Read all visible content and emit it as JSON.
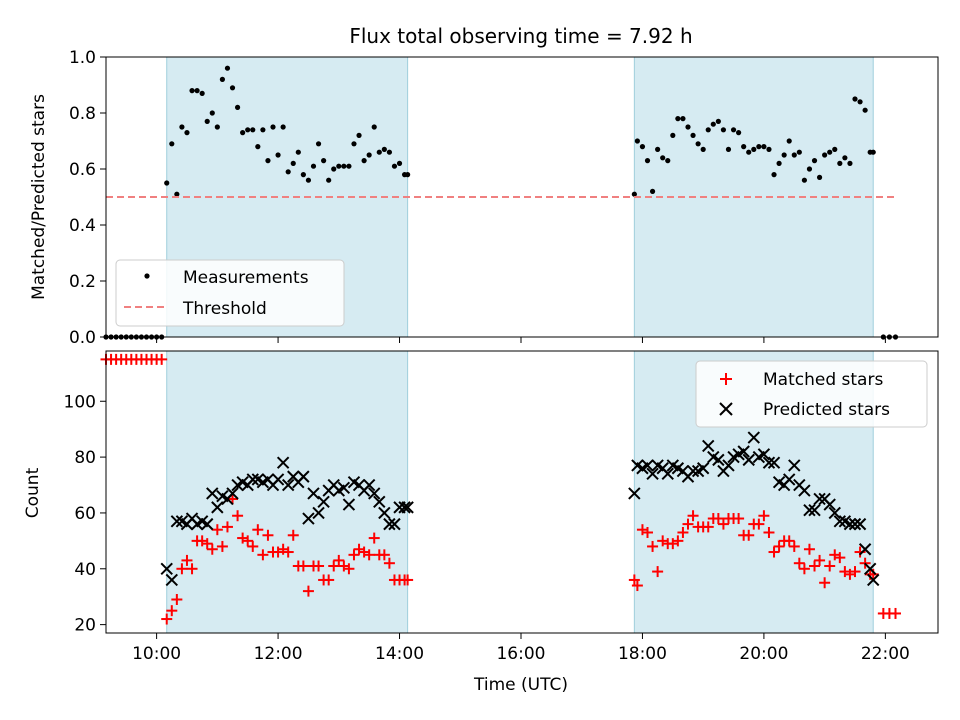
{
  "chart_data": [
    {
      "type": "scatter",
      "title": "Flux total observing time = 7.92 h",
      "xlabel": "",
      "ylabel": "Matched/Predicted stars",
      "ylim": [
        0,
        1.0
      ],
      "xlim": [
        "09:10",
        "22:52"
      ],
      "yticks": [
        0.0,
        0.2,
        0.4,
        0.6,
        0.8,
        1.0
      ],
      "ytick_labels": [
        "0.0",
        "0.2",
        "0.4",
        "0.6",
        "0.8",
        "1.0"
      ],
      "shaded_spans": [
        [
          "10:10",
          "14:08"
        ],
        [
          "17:52",
          "21:48"
        ]
      ],
      "legend_placement": "lower-left",
      "series": [
        {
          "name": "Measurements",
          "kind": "points",
          "color": "#000000",
          "x": [
            "09:10",
            "09:15",
            "09:20",
            "09:25",
            "09:30",
            "09:35",
            "09:40",
            "09:45",
            "09:50",
            "09:55",
            "10:00",
            "10:05",
            "10:10",
            "10:15",
            "10:20",
            "10:25",
            "10:30",
            "10:35",
            "10:40",
            "10:45",
            "10:50",
            "10:55",
            "11:00",
            "11:05",
            "11:10",
            "11:15",
            "11:20",
            "11:25",
            "11:30",
            "11:35",
            "11:40",
            "11:45",
            "11:50",
            "11:55",
            "12:00",
            "12:05",
            "12:10",
            "12:15",
            "12:20",
            "12:25",
            "12:30",
            "12:35",
            "12:40",
            "12:45",
            "12:50",
            "12:55",
            "13:00",
            "13:05",
            "13:10",
            "13:15",
            "13:20",
            "13:25",
            "13:30",
            "13:35",
            "13:40",
            "13:45",
            "13:50",
            "13:55",
            "14:00",
            "14:05",
            "14:08",
            "17:52",
            "17:55",
            "18:00",
            "18:05",
            "18:10",
            "18:15",
            "18:20",
            "18:25",
            "18:30",
            "18:35",
            "18:40",
            "18:45",
            "18:50",
            "18:55",
            "19:00",
            "19:05",
            "19:10",
            "19:15",
            "19:20",
            "19:25",
            "19:30",
            "19:35",
            "19:40",
            "19:45",
            "19:50",
            "19:55",
            "20:00",
            "20:05",
            "20:10",
            "20:15",
            "20:20",
            "20:25",
            "20:30",
            "20:35",
            "20:40",
            "20:45",
            "20:50",
            "20:55",
            "21:00",
            "21:05",
            "21:10",
            "21:15",
            "21:20",
            "21:25",
            "21:30",
            "21:35",
            "21:40",
            "21:45",
            "21:48",
            "21:58",
            "22:04",
            "22:10"
          ],
          "y": [
            0,
            0,
            0,
            0,
            0,
            0,
            0,
            0,
            0,
            0,
            0,
            0,
            0.55,
            0.69,
            0.51,
            0.75,
            0.73,
            0.88,
            0.88,
            0.87,
            0.77,
            0.8,
            0.75,
            0.92,
            0.96,
            0.89,
            0.82,
            0.73,
            0.74,
            0.74,
            0.68,
            0.74,
            0.63,
            0.75,
            0.65,
            0.75,
            0.59,
            0.62,
            0.66,
            0.58,
            0.56,
            0.61,
            0.69,
            0.63,
            0.56,
            0.6,
            0.61,
            0.61,
            0.61,
            0.69,
            0.72,
            0.63,
            0.65,
            0.75,
            0.66,
            0.67,
            0.66,
            0.61,
            0.62,
            0.58,
            0.58,
            0.51,
            0.7,
            0.68,
            0.63,
            0.52,
            0.67,
            0.64,
            0.63,
            0.72,
            0.78,
            0.78,
            0.75,
            0.72,
            0.69,
            0.67,
            0.74,
            0.76,
            0.77,
            0.74,
            0.67,
            0.74,
            0.73,
            0.68,
            0.66,
            0.67,
            0.68,
            0.68,
            0.67,
            0.58,
            0.62,
            0.65,
            0.7,
            0.65,
            0.66,
            0.56,
            0.6,
            0.63,
            0.57,
            0.65,
            0.66,
            0.67,
            0.62,
            0.64,
            0.62,
            0.85,
            0.84,
            0.81,
            0.66,
            0.66,
            0,
            0,
            0
          ]
        },
        {
          "name": "Threshold",
          "kind": "dashed-line",
          "color": "#f08080",
          "x": [
            "09:10",
            "22:10"
          ],
          "y": [
            0.5,
            0.5
          ]
        }
      ]
    },
    {
      "type": "scatter",
      "title": "",
      "xlabel": "Time (UTC)",
      "ylabel": "Count",
      "ylim": [
        17,
        118
      ],
      "xlim": [
        "09:10",
        "22:52"
      ],
      "yticks": [
        20,
        40,
        60,
        80,
        100
      ],
      "ytick_labels": [
        "20",
        "40",
        "60",
        "80",
        "100"
      ],
      "xticks": [
        "10:00",
        "12:00",
        "14:00",
        "16:00",
        "18:00",
        "20:00",
        "22:00"
      ],
      "xtick_labels": [
        "10:00",
        "12:00",
        "14:00",
        "16:00",
        "18:00",
        "20:00",
        "22:00"
      ],
      "shaded_spans": [
        [
          "10:10",
          "14:08"
        ],
        [
          "17:52",
          "21:48"
        ]
      ],
      "legend_placement": "top-right",
      "series": [
        {
          "name": "Matched stars",
          "marker": "plus",
          "color": "#ff0000",
          "x": [
            "09:10",
            "09:15",
            "09:20",
            "09:25",
            "09:30",
            "09:35",
            "09:40",
            "09:45",
            "09:50",
            "09:55",
            "10:00",
            "10:05",
            "10:10",
            "10:15",
            "10:20",
            "10:25",
            "10:30",
            "10:35",
            "10:40",
            "10:45",
            "10:50",
            "10:55",
            "11:00",
            "11:05",
            "11:10",
            "11:15",
            "11:20",
            "11:25",
            "11:30",
            "11:35",
            "11:40",
            "11:45",
            "11:50",
            "11:55",
            "12:00",
            "12:05",
            "12:10",
            "12:15",
            "12:20",
            "12:25",
            "12:30",
            "12:35",
            "12:40",
            "12:45",
            "12:50",
            "12:55",
            "13:00",
            "13:05",
            "13:10",
            "13:15",
            "13:20",
            "13:25",
            "13:30",
            "13:35",
            "13:40",
            "13:45",
            "13:50",
            "13:55",
            "14:00",
            "14:05",
            "14:08",
            "17:52",
            "17:55",
            "18:00",
            "18:05",
            "18:10",
            "18:15",
            "18:20",
            "18:25",
            "18:30",
            "18:35",
            "18:40",
            "18:45",
            "18:50",
            "18:55",
            "19:00",
            "19:05",
            "19:10",
            "19:15",
            "19:20",
            "19:25",
            "19:30",
            "19:35",
            "19:40",
            "19:45",
            "19:50",
            "19:55",
            "20:00",
            "20:05",
            "20:10",
            "20:15",
            "20:20",
            "20:25",
            "20:30",
            "20:35",
            "20:40",
            "20:45",
            "20:50",
            "20:55",
            "21:00",
            "21:05",
            "21:10",
            "21:15",
            "21:20",
            "21:25",
            "21:30",
            "21:35",
            "21:40",
            "21:45",
            "21:48",
            "21:58",
            "22:04",
            "22:10"
          ],
          "y": [
            115,
            115,
            115,
            115,
            115,
            115,
            115,
            115,
            115,
            115,
            115,
            115,
            22,
            25,
            29,
            40,
            43,
            40,
            50,
            50,
            49,
            47,
            54,
            48,
            55,
            65,
            59,
            51,
            50,
            48,
            54,
            45,
            52,
            46,
            46,
            47,
            46,
            52,
            41,
            41,
            32,
            41,
            41,
            36,
            36,
            41,
            43,
            41,
            40,
            45,
            47,
            46,
            45,
            51,
            45,
            45,
            42,
            36,
            36,
            36,
            36,
            36,
            34,
            54,
            53,
            48,
            39,
            50,
            49,
            49,
            50,
            53,
            56,
            59,
            55,
            55,
            55,
            58,
            58,
            56,
            58,
            58,
            58,
            52,
            52,
            56,
            56,
            59,
            53,
            46,
            48,
            50,
            50,
            48,
            42,
            40,
            47,
            41,
            43,
            35,
            41,
            45,
            44,
            39,
            38,
            39,
            46,
            42,
            38,
            38,
            24,
            24,
            24
          ]
        },
        {
          "name": "Predicted stars",
          "marker": "x",
          "color": "#000000",
          "x": [
            "10:10",
            "10:15",
            "10:20",
            "10:25",
            "10:30",
            "10:35",
            "10:40",
            "10:45",
            "10:50",
            "10:55",
            "11:00",
            "11:05",
            "11:10",
            "11:15",
            "11:20",
            "11:25",
            "11:30",
            "11:35",
            "11:40",
            "11:45",
            "11:50",
            "11:55",
            "12:00",
            "12:05",
            "12:10",
            "12:15",
            "12:20",
            "12:25",
            "12:30",
            "12:35",
            "12:40",
            "12:45",
            "12:50",
            "12:55",
            "13:00",
            "13:05",
            "13:10",
            "13:15",
            "13:20",
            "13:25",
            "13:30",
            "13:35",
            "13:40",
            "13:45",
            "13:50",
            "13:55",
            "14:00",
            "14:05",
            "14:08",
            "17:52",
            "17:55",
            "18:00",
            "18:05",
            "18:10",
            "18:15",
            "18:20",
            "18:25",
            "18:30",
            "18:35",
            "18:40",
            "18:45",
            "18:50",
            "18:55",
            "19:00",
            "19:05",
            "19:10",
            "19:15",
            "19:20",
            "19:25",
            "19:30",
            "19:35",
            "19:40",
            "19:45",
            "19:50",
            "19:55",
            "20:00",
            "20:05",
            "20:10",
            "20:15",
            "20:20",
            "20:25",
            "20:30",
            "20:35",
            "20:40",
            "20:45",
            "20:50",
            "20:55",
            "21:00",
            "21:05",
            "21:10",
            "21:15",
            "21:20",
            "21:25",
            "21:30",
            "21:35",
            "21:40",
            "21:45",
            "21:48"
          ],
          "y": [
            40,
            36,
            57,
            57,
            56,
            58,
            56,
            57,
            56,
            67,
            62,
            66,
            65,
            67,
            70,
            71,
            70,
            72,
            72,
            71,
            72,
            70,
            72,
            78,
            70,
            73,
            71,
            73,
            58,
            67,
            60,
            64,
            68,
            70,
            68,
            69,
            63,
            71,
            70,
            68,
            70,
            67,
            64,
            60,
            56,
            56,
            62,
            62,
            62,
            67,
            77,
            76,
            77,
            74,
            77,
            76,
            74,
            77,
            76,
            75,
            73,
            75,
            75,
            76,
            84,
            80,
            79,
            75,
            77,
            80,
            81,
            82,
            79,
            87,
            80,
            81,
            78,
            78,
            71,
            70,
            72,
            77,
            70,
            68,
            61,
            61,
            65,
            65,
            63,
            60,
            57,
            57,
            56,
            56,
            56,
            47,
            40,
            36
          ]
        }
      ]
    }
  ]
}
